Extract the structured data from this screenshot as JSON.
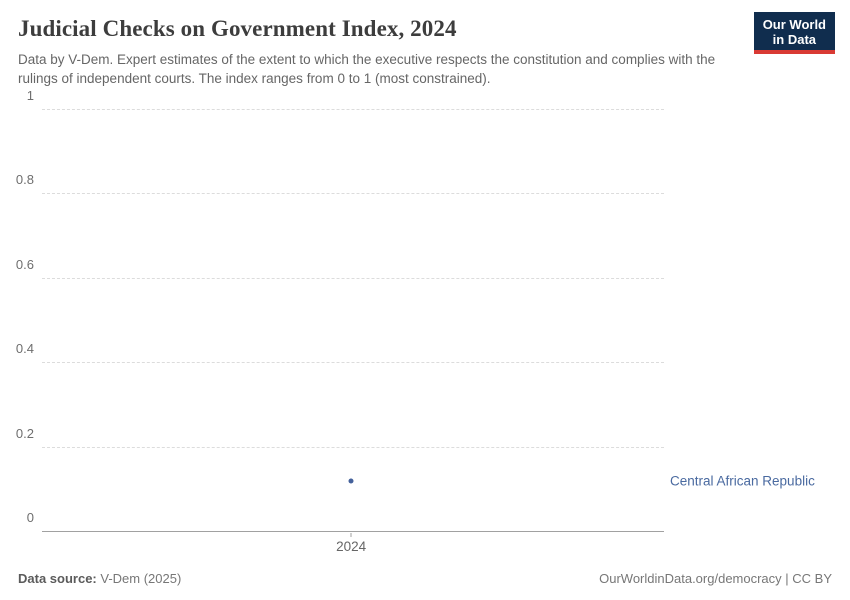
{
  "header": {
    "title": "Judicial Checks on Government Index, 2024",
    "subtitle": "Data by V-Dem. Expert estimates of the extent to which the executive respects the constitution and complies with the rulings of independent courts. The index ranges from 0 to 1 (most constrained).",
    "logo": {
      "line1": "Our World",
      "line2": "in Data"
    }
  },
  "chart_data": {
    "type": "scatter",
    "title": "Judicial Checks on Government Index, 2024",
    "x": [
      2024
    ],
    "xtick_labels": [
      "2024"
    ],
    "series": [
      {
        "name": "Central African Republic",
        "values": [
          0.12
        ]
      }
    ],
    "xlabel": "",
    "ylabel": "",
    "ylim": [
      0,
      1
    ],
    "yticks": [
      0,
      0.2,
      0.4,
      0.6,
      0.8,
      1
    ],
    "ytick_labels": [
      "0",
      "0.2",
      "0.4",
      "0.6",
      "0.8",
      "1"
    ],
    "grid": "horizontal-dashed",
    "legend_position": "entity-label-right-of-plot"
  },
  "colors": {
    "series": "#44619b",
    "entity_label": "#4a6aa0",
    "grid": "#dcdcdc",
    "axis": "#a1a1a1",
    "tick_label": "#6e6e6e",
    "title": "#3d3d3d",
    "subtitle": "#666666",
    "logo_bg": "#102d4e",
    "logo_accent": "#d93a34",
    "footer": "#777777"
  },
  "footer": {
    "source_label": "Data source:",
    "source_value": " V-Dem (2025)",
    "right_text": "OurWorldinData.org/democracy | CC BY"
  }
}
